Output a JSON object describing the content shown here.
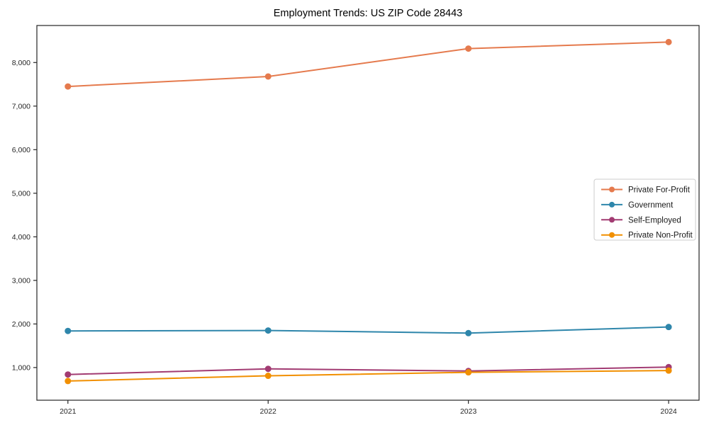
{
  "chart_data": {
    "type": "line",
    "title": "Employment Trends: US ZIP Code 28443",
    "categories": [
      2021,
      2022,
      2023,
      2024
    ],
    "xtick_labels": [
      "2021",
      "2022",
      "2023",
      "2024"
    ],
    "series": [
      {
        "name": "Private For-Profit",
        "color": "#E57A4D",
        "values": [
          7450,
          7680,
          8320,
          8470
        ]
      },
      {
        "name": "Government",
        "color": "#2E86AB",
        "values": [
          1840,
          1850,
          1790,
          1930
        ]
      },
      {
        "name": "Self-Employed",
        "color": "#A23B72",
        "values": [
          840,
          970,
          920,
          1010
        ]
      },
      {
        "name": "Private Non-Profit",
        "color": "#F18F01",
        "values": [
          690,
          810,
          890,
          930
        ]
      }
    ],
    "xlabel": "",
    "ylabel": "",
    "xlim": [
      2020.845,
      2024.152
    ],
    "ylim": [
      250,
      8850
    ],
    "yticks": [
      1000,
      2000,
      3000,
      4000,
      5000,
      6000,
      7000,
      8000
    ],
    "ytick_labels": [
      "1,000",
      "2,000",
      "3,000",
      "4,000",
      "5,000",
      "6,000",
      "7,000",
      "8,000"
    ],
    "grid": false,
    "legend": {
      "position": "center-right",
      "frame": true,
      "border_color": "#cccccc",
      "background": "#ffffff"
    },
    "marker": "circle",
    "axis_color": "#262626"
  }
}
